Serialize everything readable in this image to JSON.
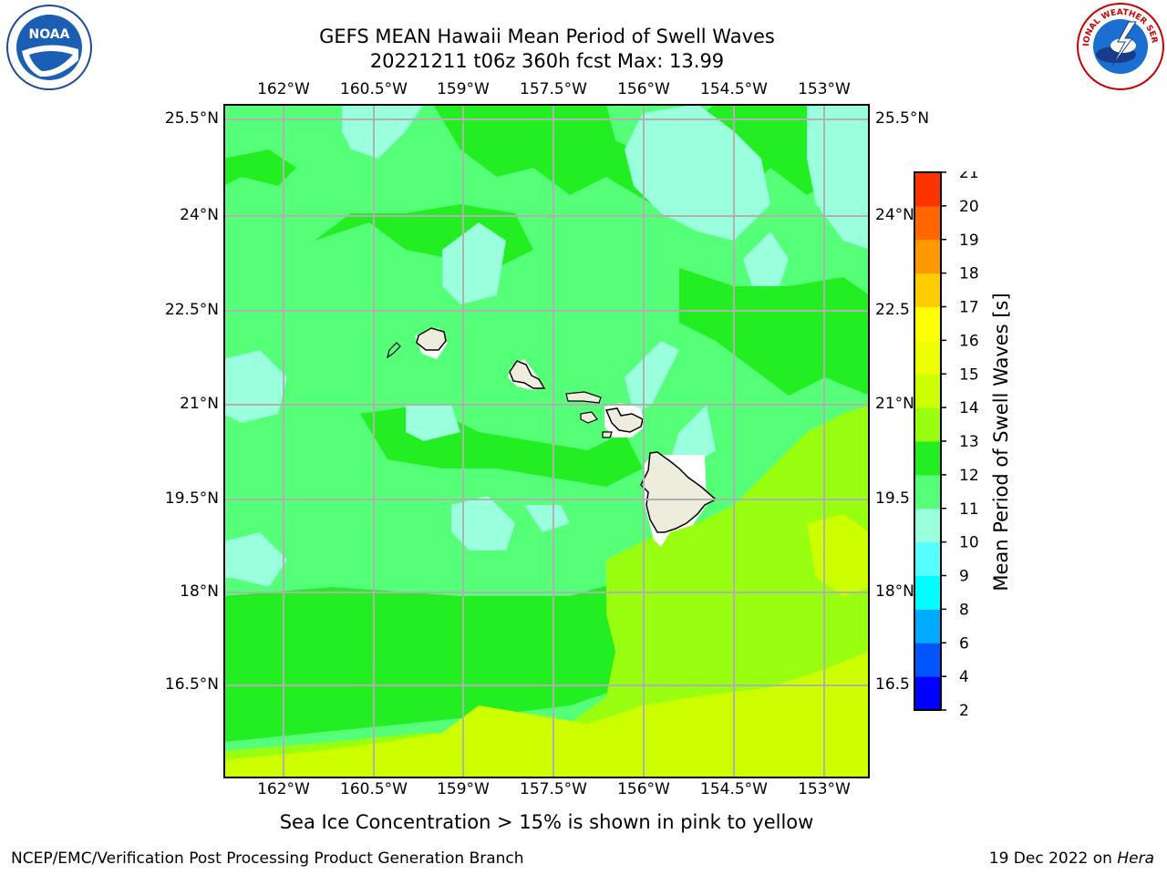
{
  "title": {
    "line1": "GEFS MEAN Hawaii Mean Period of Swell Waves",
    "line2": "20221211 t06z 360h fcst   Max: 13.99"
  },
  "map": {
    "lon_ticks": [
      "162°W",
      "160.5°W",
      "159°W",
      "157.5°W",
      "156°W",
      "154.5°W",
      "153°W"
    ],
    "lat_ticks": [
      "25.5°N",
      "24°N",
      "22.5°N",
      "21°N",
      "19.5°N",
      "18°N",
      "16.5°N"
    ],
    "lat_ticks_right": [
      "25.5°N",
      "24°N",
      "22.5",
      "21°N",
      "19.5",
      "18°N",
      "16.5"
    ],
    "land_color": "#eeecdc",
    "grid_color": "#b0b0b0",
    "islands": [
      "Niihau",
      "Kauai",
      "Oahu",
      "Molokai",
      "Lanai",
      "Kahoolawe",
      "Maui",
      "Hawaii"
    ]
  },
  "colorbar": {
    "label": "Mean Period of Swell Waves [s]",
    "ticks": [
      "2",
      "4",
      "6",
      "8",
      "9",
      "10",
      "11",
      "12",
      "13",
      "14",
      "15",
      "16",
      "17",
      "18",
      "19",
      "20",
      "21"
    ],
    "colors": [
      "#0000ff",
      "#0055ff",
      "#00aaff",
      "#00ffff",
      "#55ffff",
      "#99ffdd",
      "#55ff77",
      "#22ee22",
      "#99ff11",
      "#ccff00",
      "#eeff00",
      "#ffff00",
      "#ffcc00",
      "#ff9900",
      "#ff6600",
      "#ff3300",
      "#ff0000"
    ]
  },
  "caption": "Sea Ice Concentration > 15% is shown in pink to yellow",
  "footer": {
    "left": "NCEP/EMC/Verification Post Processing Product Generation Branch",
    "right_prefix": "19 Dec 2022 on ",
    "right_host": "Hera"
  },
  "logos": {
    "noaa_text": "NOAA",
    "nws_text": "NATIONAL WEATHER SERVICE"
  }
}
